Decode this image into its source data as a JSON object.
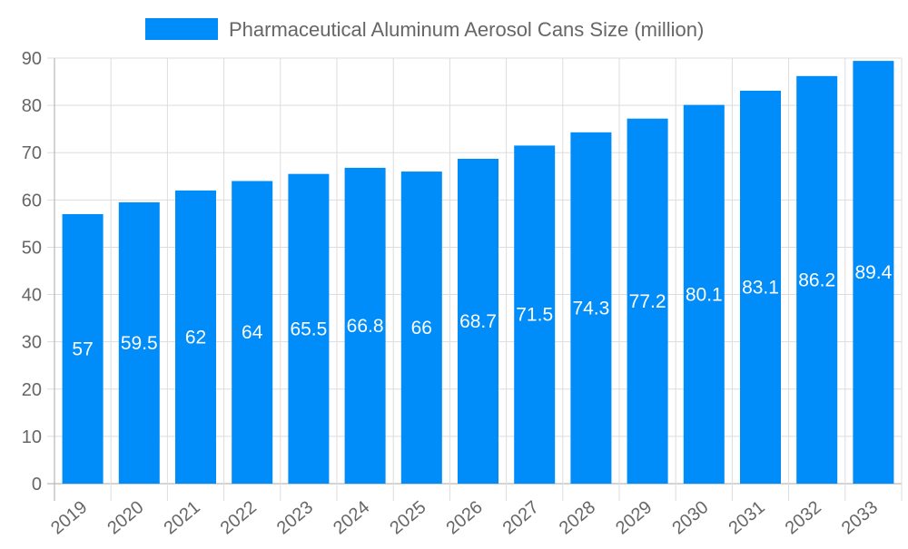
{
  "chart_data": {
    "type": "bar",
    "title": "",
    "xlabel": "",
    "ylabel": "",
    "categories": [
      "2019",
      "2020",
      "2021",
      "2022",
      "2023",
      "2024",
      "2025",
      "2026",
      "2027",
      "2028",
      "2029",
      "2030",
      "2031",
      "2032",
      "2033"
    ],
    "series": [
      {
        "name": "Pharmaceutical Aluminum Aerosol Cans Size (million)",
        "values": [
          57,
          59.5,
          62,
          64,
          65.5,
          66.8,
          66,
          68.7,
          71.5,
          74.3,
          77.2,
          80.1,
          83.1,
          86.2,
          89.4
        ],
        "color": "#008cf9"
      }
    ],
    "ylim": [
      0,
      90
    ],
    "yticks": [
      0,
      10,
      20,
      30,
      40,
      50,
      60,
      70,
      80,
      90
    ],
    "grid": true,
    "legend_position": "top",
    "data_labels": true,
    "data_label_color": "#ffffff",
    "axis_text_color": "#666666",
    "grid_color": "#dddddd"
  }
}
